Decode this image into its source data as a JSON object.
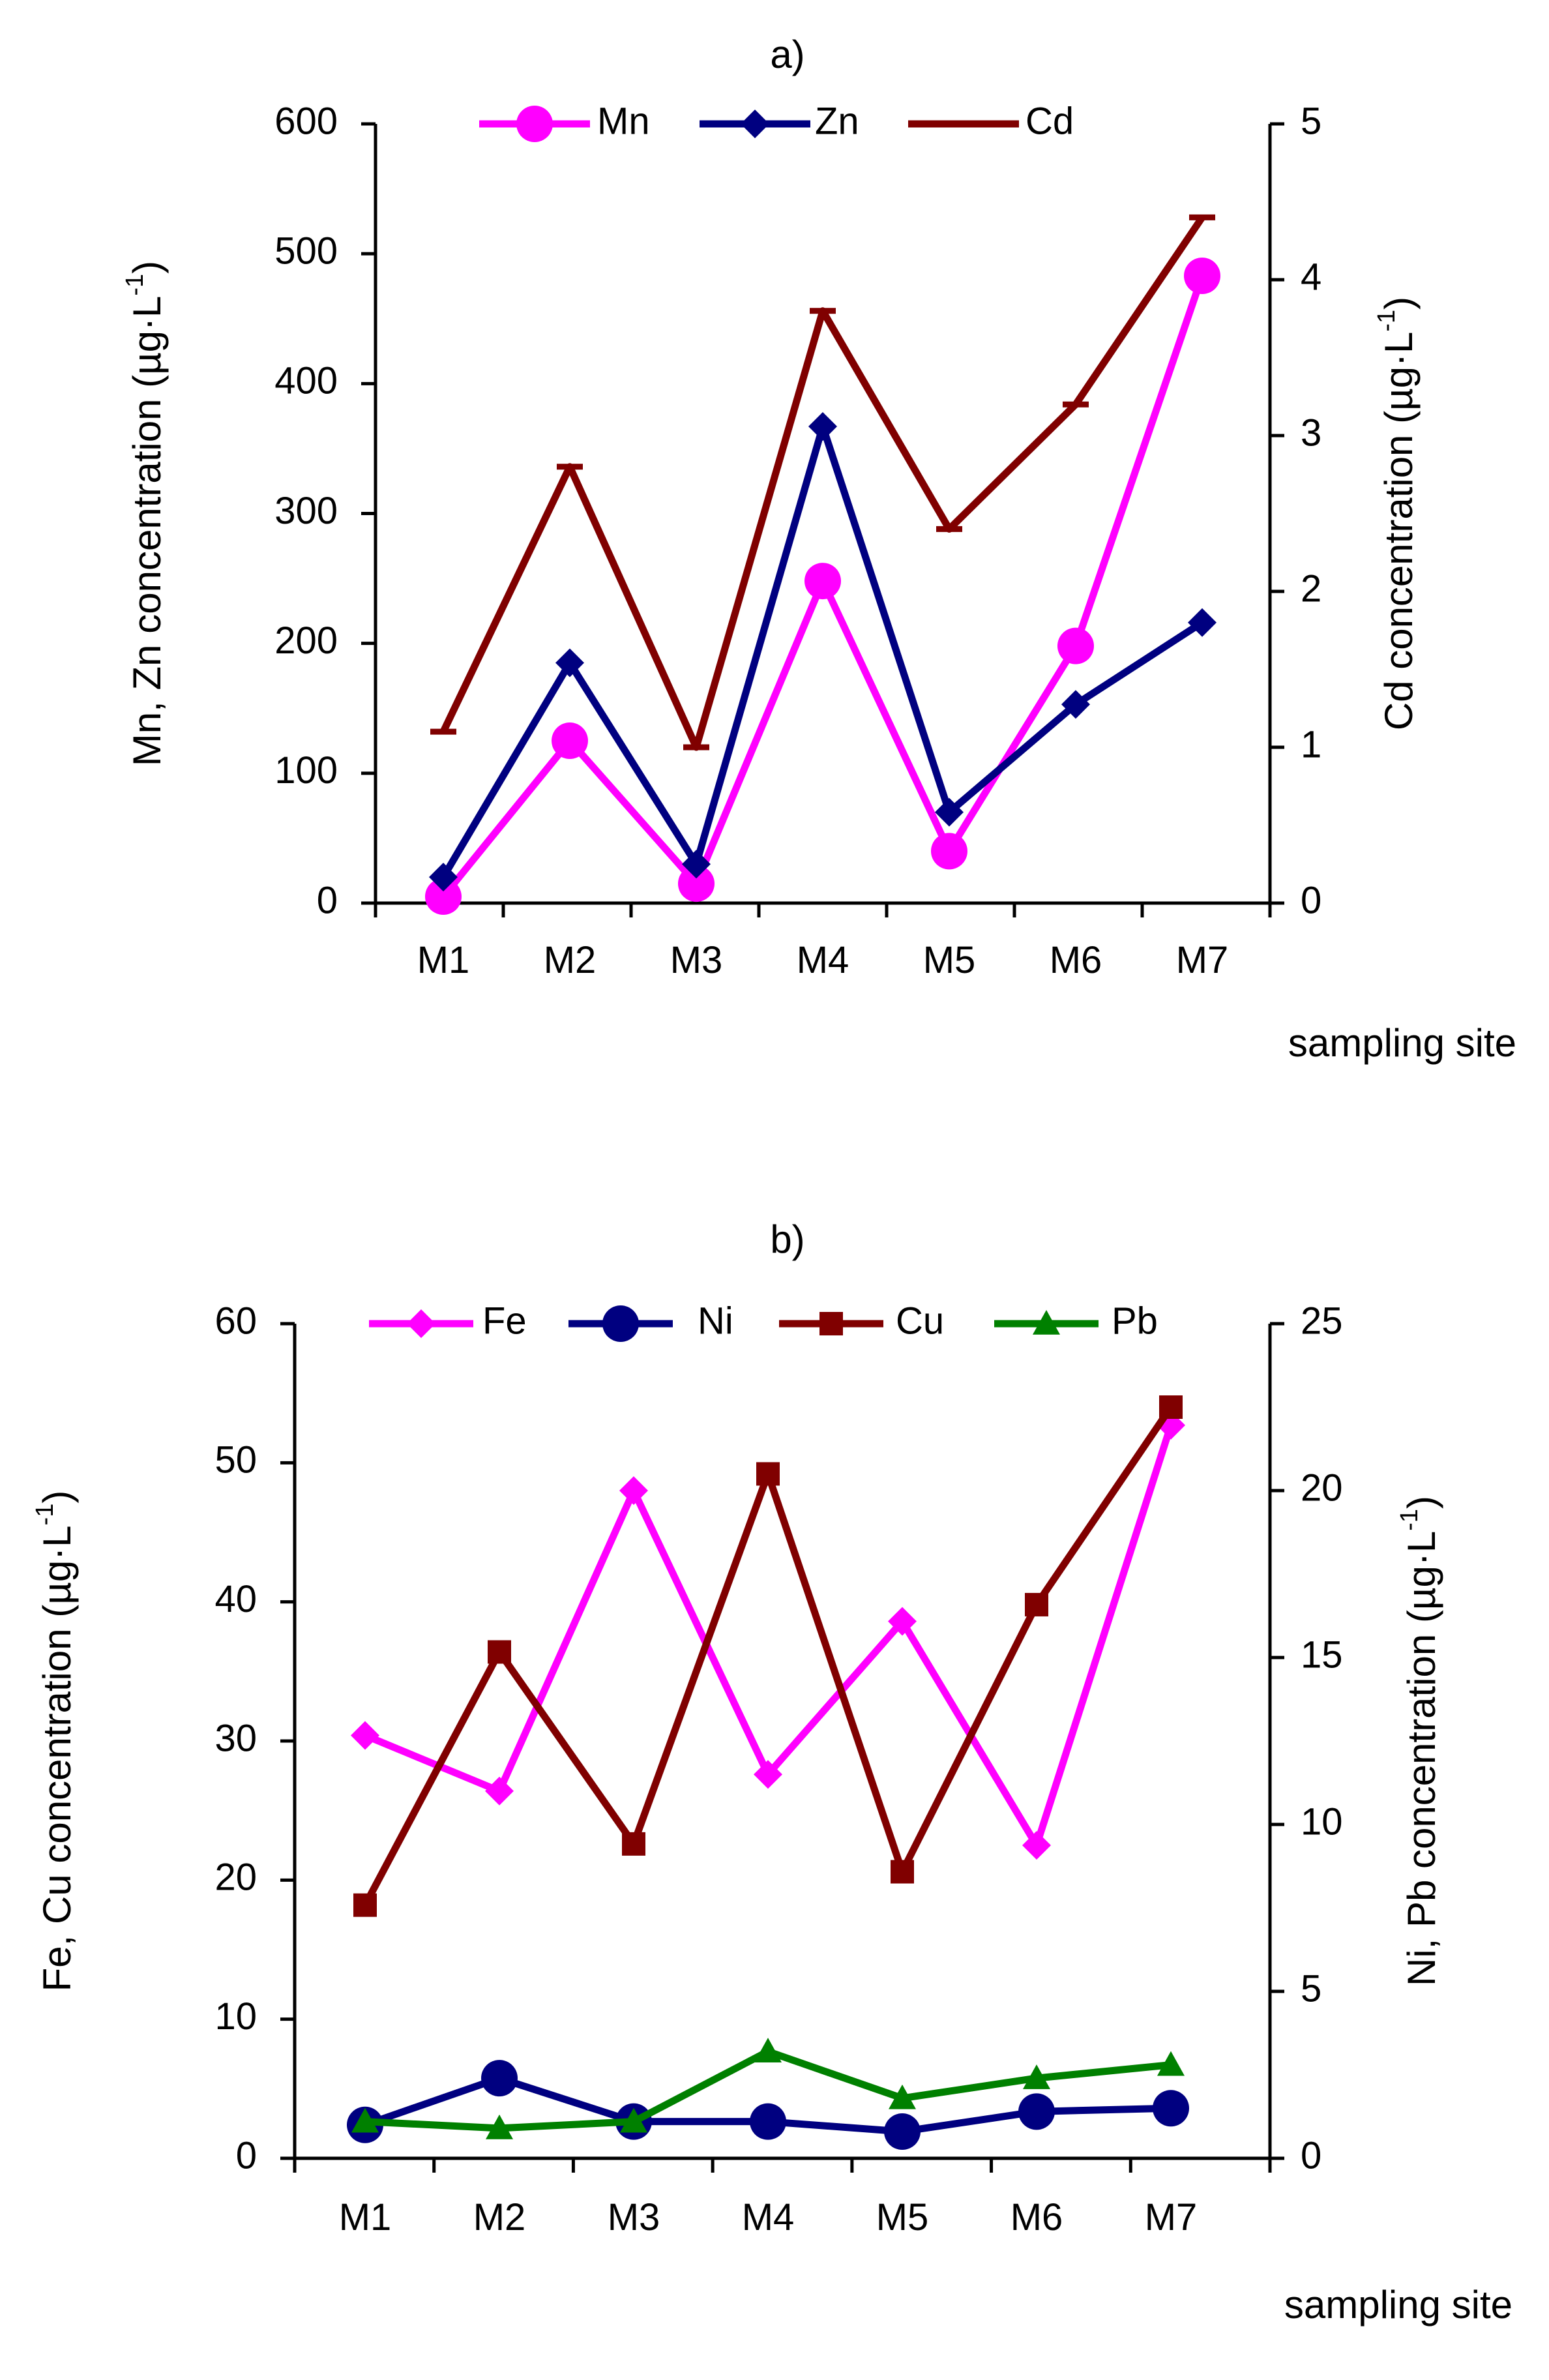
{
  "chart_data": [
    {
      "panel": "a)",
      "type": "line",
      "categories": [
        "M1",
        "M2",
        "M3",
        "M4",
        "M5",
        "M6",
        "M7"
      ],
      "xlabel": "sampling site",
      "left_axis": {
        "label": "Mn, Zn concentration (µg·L",
        "label_sup": "-1",
        "label_close": ")",
        "ylim": [
          0,
          600
        ],
        "ticks": [
          "0",
          "100",
          "200",
          "300",
          "400",
          "500",
          "600"
        ]
      },
      "right_axis": {
        "label": "Cd concentration (µg·L",
        "label_sup": "-1",
        "label_close": ")",
        "ylim": [
          0,
          5
        ],
        "ticks": [
          "0",
          "1",
          "2",
          "3",
          "4",
          "5"
        ]
      },
      "series": [
        {
          "name": "Mn",
          "axis": "left",
          "color": "#ff00ff",
          "marker": "circle",
          "values": [
            5,
            125,
            15,
            248,
            40,
            198,
            483
          ]
        },
        {
          "name": "Zn",
          "axis": "left",
          "color": "#000080",
          "marker": "diamond",
          "values": [
            20,
            185,
            30,
            367,
            70,
            153,
            216
          ]
        },
        {
          "name": "Cd",
          "axis": "right",
          "color": "#800000",
          "marker": "dash",
          "values": [
            1.1,
            2.8,
            1.0,
            3.8,
            2.4,
            3.2,
            4.4
          ]
        }
      ]
    },
    {
      "panel": "b)",
      "type": "line",
      "categories": [
        "M1",
        "M2",
        "M3",
        "M4",
        "M5",
        "M6",
        "M7"
      ],
      "xlabel": "sampling site",
      "left_axis": {
        "label": "Fe, Cu concentration (µg·L",
        "label_sup": "-1",
        "label_close": ")",
        "ylim": [
          0,
          60
        ],
        "ticks": [
          "0",
          "10",
          "20",
          "30",
          "40",
          "50",
          "60"
        ]
      },
      "right_axis": {
        "label": "Ni, Pb concentration (µg·L",
        "label_sup": "-1",
        "label_close": ")",
        "ylim": [
          0,
          25
        ],
        "ticks": [
          "0",
          "5",
          "10",
          "15",
          "20",
          "25"
        ]
      },
      "series": [
        {
          "name": "Fe",
          "axis": "left",
          "color": "#ff00ff",
          "marker": "diamond",
          "values": [
            30.4,
            26.4,
            48.0,
            27.6,
            38.6,
            22.5,
            52.7
          ]
        },
        {
          "name": "Ni",
          "axis": "right",
          "color": "#000080",
          "marker": "circle",
          "values": [
            1.0,
            2.4,
            1.1,
            1.1,
            0.8,
            1.4,
            1.5
          ]
        },
        {
          "name": "Cu",
          "axis": "left",
          "color": "#800000",
          "marker": "square",
          "values": [
            18.2,
            36.4,
            22.6,
            49.2,
            20.6,
            39.8,
            54.0
          ]
        },
        {
          "name": "Pb",
          "axis": "right",
          "color": "#008000",
          "marker": "triangle",
          "values": [
            1.1,
            0.9,
            1.1,
            3.2,
            1.8,
            2.4,
            2.8
          ]
        }
      ]
    }
  ]
}
